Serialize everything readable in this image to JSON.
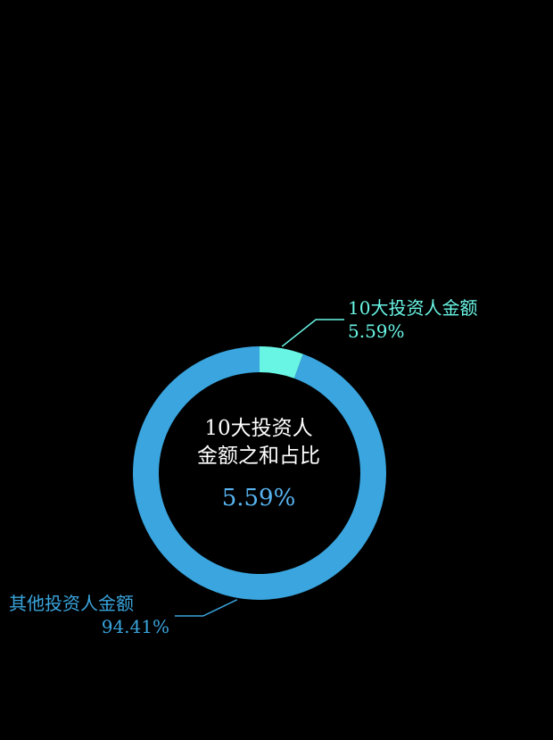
{
  "chart_data": {
    "type": "pie",
    "donut": true,
    "title": "",
    "series": [
      {
        "values": [
          5.59,
          94.41
        ]
      }
    ],
    "slices": [
      {
        "name": "10大投资人金额",
        "value": 5.59,
        "value_label": "5.59%",
        "color": "#69f5e4"
      },
      {
        "name": "其他投资人金额",
        "value": 94.41,
        "value_label": "94.41%",
        "color": "#3aa5de"
      }
    ],
    "center": {
      "line1": "10大投资人",
      "line2": "金额之和占比",
      "value": "5.59%",
      "value_color": "#57b3f0"
    },
    "legend": "none",
    "background": "#000000"
  }
}
